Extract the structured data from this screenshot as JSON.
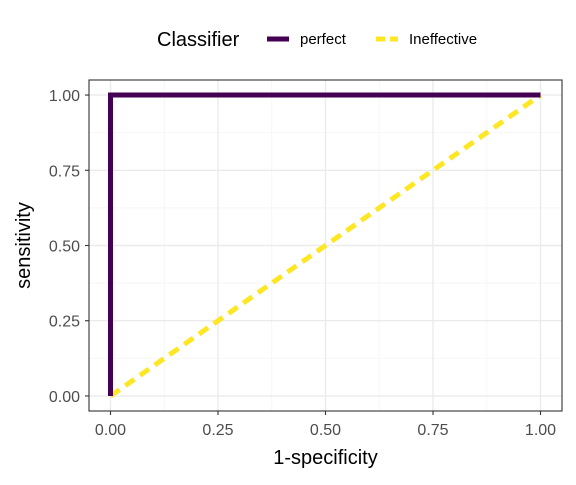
{
  "chart_data": {
    "type": "line",
    "legend": {
      "title": "Classifier",
      "placement": "top"
    },
    "series": [
      {
        "name": "perfect",
        "color": "#440154",
        "line_style": "solid",
        "points": [
          [
            0,
            0
          ],
          [
            0,
            1
          ],
          [
            1,
            1
          ]
        ]
      },
      {
        "name": "Ineffective",
        "color": "#FDE725",
        "line_style": "dashed",
        "points": [
          [
            0,
            0
          ],
          [
            1,
            1
          ]
        ]
      }
    ],
    "xlabel": "1-specificity",
    "ylabel": "sensitivity",
    "xlim": [
      -0.05,
      1.05
    ],
    "ylim": [
      -0.05,
      1.05
    ],
    "xticks": [
      0,
      0.25,
      0.5,
      0.75,
      1
    ],
    "yticks": [
      0,
      0.25,
      0.5,
      0.75,
      1
    ],
    "xtick_labels": [
      "0.00",
      "0.25",
      "0.50",
      "0.75",
      "1.00"
    ],
    "ytick_labels": [
      "0.00",
      "0.25",
      "0.50",
      "0.75",
      "1.00"
    ],
    "grid": true,
    "colors": {
      "major_grid": "#EBEBEB",
      "minor_grid": "#F5F5F5",
      "panel_border": "#333333",
      "tick_text": "#4D4D4D",
      "title_text": "#000000"
    }
  }
}
